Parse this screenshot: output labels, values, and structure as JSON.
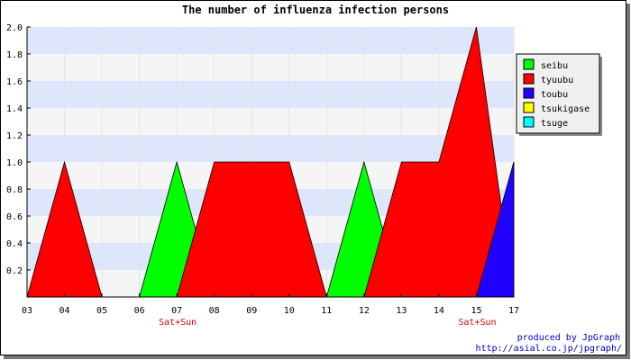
{
  "chart_data": {
    "type": "area",
    "title": "The number of influenza infection persons",
    "x": [
      "03",
      "04",
      "05",
      "06",
      "07",
      "08",
      "09",
      "10",
      "11",
      "12",
      "13",
      "14",
      "15",
      "17"
    ],
    "ylim": [
      0,
      2.0
    ],
    "y_ticks": [
      "0.2",
      "0.4",
      "0.6",
      "0.8",
      "1.0",
      "1.2",
      "1.4",
      "1.6",
      "1.8",
      "2.0"
    ],
    "weekend_marks": [
      {
        "label": "Sat+Sun",
        "under": "07"
      },
      {
        "label": "Sat+Sun",
        "under": "15"
      }
    ],
    "legend_position": "right",
    "grid": "horizontal alternating bands",
    "band_colors": [
      "#dde6fb",
      "#f5f5f5"
    ],
    "series": [
      {
        "name": "seibu",
        "color": "#00ff00",
        "values": [
          0,
          0,
          0,
          0,
          1,
          0,
          0,
          0,
          0,
          1,
          0,
          0,
          0,
          1
        ]
      },
      {
        "name": "tyuubu",
        "color": "#ff0000",
        "values": [
          0,
          1,
          0,
          0,
          0,
          1,
          1,
          1,
          0,
          0,
          1,
          1,
          2,
          0
        ]
      },
      {
        "name": "toubu",
        "color": "#2200ff",
        "values": [
          0,
          0,
          0,
          0,
          0,
          0,
          0,
          0,
          0,
          0,
          0,
          0,
          0,
          1
        ]
      },
      {
        "name": "tsukigase",
        "color": "#ffff00",
        "values": [
          0,
          0,
          0,
          0,
          0,
          0,
          0,
          0,
          0,
          0,
          0,
          0,
          0,
          0
        ]
      },
      {
        "name": "tsuge",
        "color": "#00ffff",
        "values": [
          0,
          0,
          0,
          0,
          0,
          0,
          0,
          0,
          0,
          0,
          0,
          0,
          0,
          0
        ]
      }
    ]
  },
  "credit": {
    "line1": "produced by JpGraph",
    "line2": "http://asial.co.jp/jpgraph/"
  }
}
